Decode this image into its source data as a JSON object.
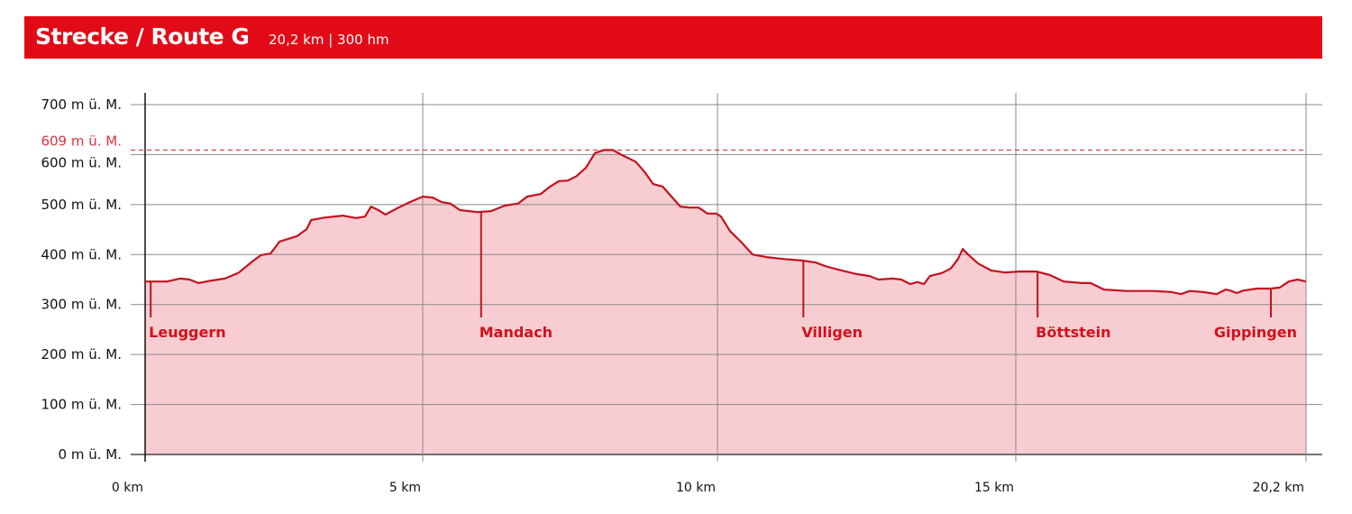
{
  "header": {
    "title": "Strecke / Route G",
    "subtitle": "20,2 km | 300 hm"
  },
  "colors": {
    "banner": "#e20a16",
    "profile_line": "#c2131f",
    "profile_fill": "#f8cdd2",
    "max_line": "#d9363e",
    "town_label": "#d50f1c"
  },
  "chart_data": {
    "type": "area",
    "title": "Strecke / Route G",
    "xlim": [
      0,
      20.2
    ],
    "ylim": [
      0,
      700
    ],
    "grid": true,
    "x_ticks": [
      {
        "value": 0,
        "label": "0 km"
      },
      {
        "value": 5,
        "label": "5 km"
      },
      {
        "value": 10,
        "label": "10 km"
      },
      {
        "value": 15,
        "label": "15 km"
      },
      {
        "value": 20.2,
        "label": "20,2 km"
      }
    ],
    "y_ticks": [
      {
        "value": 0,
        "label": "0 m ü. M."
      },
      {
        "value": 100,
        "label": "100 m ü. M."
      },
      {
        "value": 200,
        "label": "200 m ü. M."
      },
      {
        "value": 300,
        "label": "300 m ü. M."
      },
      {
        "value": 400,
        "label": "400 m ü. M."
      },
      {
        "value": 500,
        "label": "500 m ü. M."
      },
      {
        "value": 600,
        "label": "600 m ü. M."
      },
      {
        "value": 700,
        "label": "700 m ü. M."
      }
    ],
    "max_elevation": {
      "value": 609,
      "label": "609 m ü. M."
    },
    "x": [
      0,
      0.39,
      0.63,
      0.8,
      0.96,
      1.2,
      1.44,
      1.69,
      1.93,
      2.09,
      2.26,
      2.42,
      2.74,
      2.91,
      2.99,
      3.23,
      3.56,
      3.8,
      3.96,
      4.07,
      4.2,
      4.33,
      4.53,
      4.77,
      5.0,
      5.17,
      5.32,
      5.47,
      5.63,
      5.93,
      6.16,
      6.39,
      6.62,
      6.77,
      7.0,
      7.16,
      7.31,
      7.46,
      7.61,
      7.77,
      7.92,
      8.07,
      8.23,
      8.38,
      8.61,
      8.76,
      8.91,
      9.07,
      9.22,
      9.37,
      9.53,
      9.68,
      9.83,
      9.98,
      10.06,
      10.21,
      10.39,
      10.59,
      10.82,
      11.12,
      11.42,
      11.65,
      11.8,
      12.02,
      12.33,
      12.55,
      12.7,
      12.93,
      13.08,
      13.23,
      13.35,
      13.46,
      13.56,
      13.76,
      13.91,
      14.03,
      14.11,
      14.21,
      14.37,
      14.59,
      14.82,
      15.05,
      15.37,
      15.61,
      15.86,
      16.18,
      16.34,
      16.58,
      16.99,
      17.47,
      17.79,
      17.96,
      18.12,
      18.36,
      18.6,
      18.76,
      18.84,
      18.96,
      19.08,
      19.32,
      19.57,
      19.73,
      19.89,
      20.05,
      20.2
    ],
    "y": [
      346,
      346,
      352,
      350,
      343,
      348,
      352,
      364,
      386,
      399,
      402,
      426,
      437,
      451,
      469,
      474,
      478,
      473,
      476,
      496,
      489,
      480,
      492,
      505,
      516,
      514,
      505,
      502,
      489,
      485,
      487,
      498,
      502,
      516,
      521,
      536,
      547,
      548,
      557,
      574,
      603,
      609,
      609,
      599,
      586,
      566,
      541,
      536,
      516,
      496,
      494,
      494,
      482,
      482,
      476,
      447,
      426,
      400,
      395,
      391,
      388,
      384,
      377,
      370,
      361,
      357,
      350,
      352,
      350,
      341,
      345,
      341,
      357,
      363,
      372,
      391,
      411,
      399,
      382,
      368,
      364,
      366,
      366,
      359,
      346,
      343,
      343,
      330,
      327,
      327,
      325,
      321,
      327,
      325,
      321,
      330,
      328,
      323,
      328,
      332,
      332,
      334,
      346,
      350,
      346
    ],
    "towns": [
      {
        "name": "Leuggern",
        "km": 0.1,
        "elevation": 346
      },
      {
        "name": "Mandach",
        "km": 5.99,
        "elevation": 485
      },
      {
        "name": "Villigen",
        "km": 11.44,
        "elevation": 388
      },
      {
        "name": "Böttstein",
        "km": 15.39,
        "elevation": 366
      },
      {
        "name": "Gippingen",
        "km": 19.57,
        "elevation": 332
      }
    ]
  }
}
